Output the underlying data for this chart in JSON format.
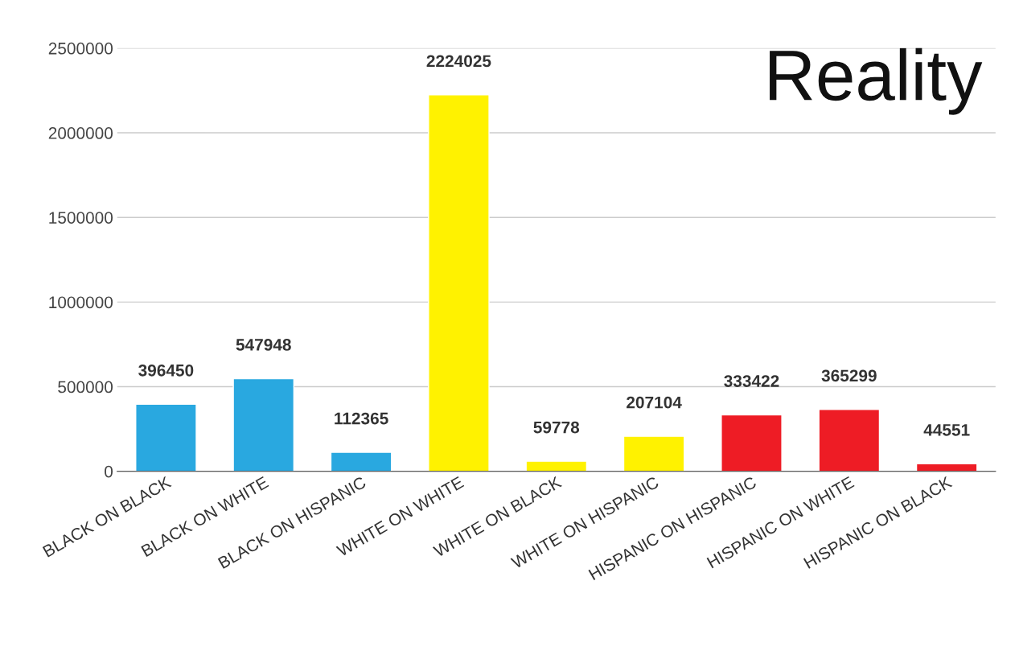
{
  "chart_data": {
    "type": "bar",
    "title": "Reality",
    "categories": [
      "BLACK ON BLACK",
      "BLACK ON WHITE",
      "BLACK ON HISPANIC",
      "WHITE ON WHITE",
      "WHITE ON BLACK",
      "WHITE ON HISPANIC",
      "HISPANIC ON HISPANIC",
      "HISPANIC ON WHITE",
      "HISPANIC ON BLACK"
    ],
    "values": [
      396450,
      547948,
      112365,
      2224025,
      59778,
      207104,
      333422,
      365299,
      44551
    ],
    "colors": [
      "#29a8e0",
      "#29a8e0",
      "#29a8e0",
      "#fff200",
      "#fff200",
      "#fff200",
      "#ee1c25",
      "#ee1c25",
      "#ee1c25"
    ],
    "ylim": [
      0,
      2500000
    ],
    "yticks": [
      0,
      500000,
      1000000,
      1500000,
      2000000,
      2500000
    ],
    "grid": "y",
    "data_labels": true
  }
}
